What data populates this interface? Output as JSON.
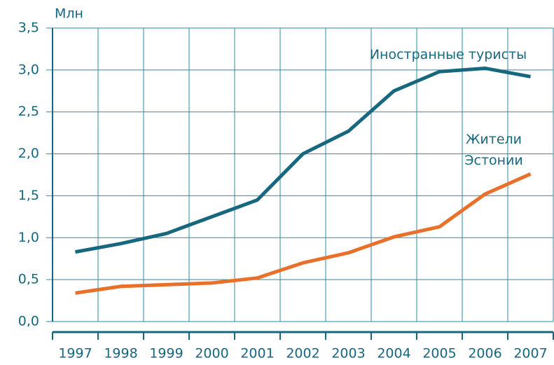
{
  "chart_data": {
    "type": "line",
    "y_label": "Млн",
    "categories": [
      "1997",
      "1998",
      "1999",
      "2000",
      "2001",
      "2002",
      "2003",
      "2004",
      "2005",
      "2006",
      "2007"
    ],
    "series": [
      {
        "name": "Иностранные туристы",
        "color": "#17677f",
        "values": [
          0.83,
          0.93,
          1.05,
          1.25,
          1.45,
          2.0,
          2.27,
          2.75,
          2.98,
          3.02,
          2.92
        ]
      },
      {
        "name": "Жители Эстонии",
        "color": "#e8702a",
        "values": [
          0.34,
          0.42,
          0.44,
          0.46,
          0.52,
          0.7,
          0.82,
          1.01,
          1.13,
          1.52,
          1.76
        ]
      }
    ],
    "ylim": [
      0,
      3.5
    ],
    "yticks": [
      {
        "value": 0,
        "label": "0,0"
      },
      {
        "value": 0.5,
        "label": "0,5"
      },
      {
        "value": 1,
        "label": "1,0"
      },
      {
        "value": 1.5,
        "label": "1,5"
      },
      {
        "value": 2,
        "label": "2,0"
      },
      {
        "value": 2.5,
        "label": "2,5"
      },
      {
        "value": 3,
        "label": "3,0"
      },
      {
        "value": 3.5,
        "label": "3,5"
      }
    ],
    "grid": true
  }
}
